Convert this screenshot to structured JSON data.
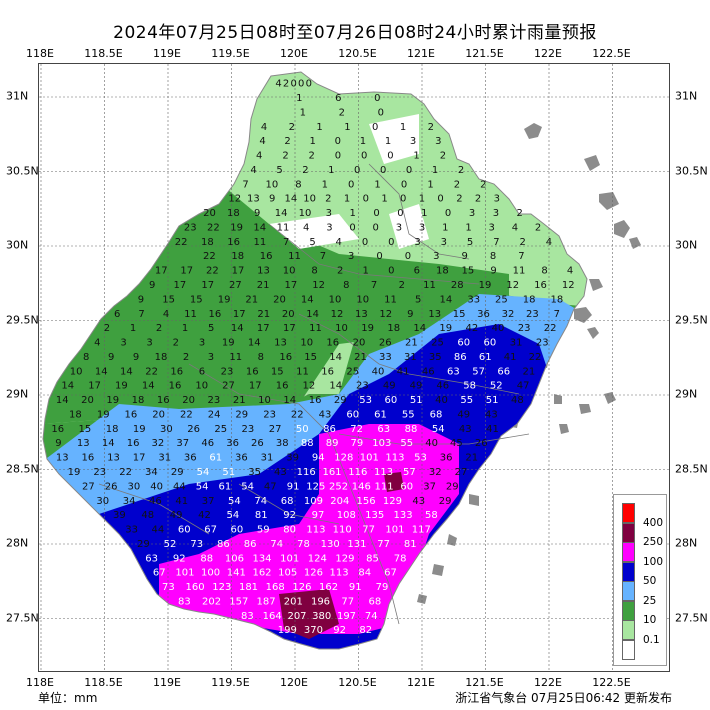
{
  "title": "2024年07月25日08时至07月26日08时24小时累计雨量预报",
  "unit_label": "单位：mm",
  "issuer": "浙江省气象台 07月25日06:42 更新发布",
  "lon_ticks": [
    "118E",
    "118.5E",
    "119E",
    "119.5E",
    "120E",
    "120.5E",
    "121E",
    "121.5E",
    "122E",
    "122.5E"
  ],
  "lat_ticks": [
    "31N",
    "30.5N",
    "30N",
    "29.5N",
    "29N",
    "28.5N",
    "28N",
    "27.5N"
  ],
  "legend": {
    "labels": [
      "400",
      "250",
      "100",
      "50",
      "25",
      "10",
      "0.1"
    ],
    "colors": [
      "#ff0000",
      "#800040",
      "#ff00ff",
      "#0000cd",
      "#66b3ff",
      "#3fa03f",
      "#a8e6a0",
      "#ffffff"
    ]
  },
  "rain_values": [
    [
      "4",
      "2",
      "0",
      "0",
      "0"
    ],
    [
      "1",
      "6",
      "0"
    ],
    [
      "1",
      "2",
      "0"
    ],
    [
      "4",
      "2",
      "1",
      "1",
      "0",
      "1",
      "2"
    ],
    [
      "4",
      "2",
      "1",
      "0",
      "1",
      "1",
      "3",
      "3"
    ],
    [
      "4",
      "2",
      "2",
      "0",
      "0",
      "0",
      "1",
      "2"
    ],
    [
      "4",
      "5",
      "2",
      "1",
      "0",
      "0",
      "0",
      "1",
      "2"
    ],
    [
      "7",
      "10",
      "8",
      "1",
      "0",
      "1",
      "0",
      "1",
      "2",
      "2"
    ],
    [
      "12",
      "13",
      "9",
      "14",
      "10",
      "2",
      "1",
      "0",
      "1",
      "0",
      "1",
      "0",
      "2",
      "2",
      "3"
    ],
    [
      "20",
      "18",
      "9",
      "14",
      "10",
      "3",
      "1",
      "0",
      "0",
      "1",
      "0",
      "3",
      "3",
      "2"
    ],
    [
      "23",
      "22",
      "19",
      "14",
      "11",
      "4",
      "3",
      "0",
      "0",
      "3",
      "3",
      "1",
      "1",
      "3",
      "4",
      "2"
    ],
    [
      "22",
      "18",
      "16",
      "11",
      "7",
      "5",
      "4",
      "0",
      "0",
      "3",
      "3",
      "5",
      "7",
      "2",
      "4"
    ],
    [
      "22",
      "18",
      "16",
      "11",
      "7",
      "3",
      "0",
      "0",
      "3",
      "9",
      "8",
      "7"
    ],
    [
      "17",
      "17",
      "22",
      "17",
      "13",
      "10",
      "8",
      "2",
      "1",
      "0",
      "6",
      "18",
      "15",
      "9",
      "11",
      "8",
      "4"
    ],
    [
      "9",
      "17",
      "17",
      "27",
      "21",
      "17",
      "12",
      "8",
      "7",
      "2",
      "11",
      "28",
      "19",
      "12",
      "16",
      "12"
    ],
    [
      "9",
      "15",
      "15",
      "19",
      "21",
      "20",
      "14",
      "10",
      "10",
      "11",
      "5",
      "14",
      "33",
      "25",
      "18",
      "18"
    ],
    [
      "6",
      "7",
      "4",
      "11",
      "16",
      "17",
      "21",
      "20",
      "14",
      "12",
      "13",
      "12",
      "9",
      "13",
      "15",
      "36",
      "32",
      "23",
      "7"
    ],
    [
      "2",
      "1",
      "2",
      "1",
      "5",
      "14",
      "17",
      "17",
      "11",
      "10",
      "19",
      "18",
      "14",
      "19",
      "42",
      "40",
      "23",
      "22"
    ],
    [
      "4",
      "3",
      "3",
      "2",
      "3",
      "19",
      "14",
      "13",
      "10",
      "16",
      "20",
      "26",
      "21",
      "25",
      "60",
      "60",
      "31",
      "23"
    ],
    [
      "8",
      "9",
      "9",
      "18",
      "2",
      "3",
      "11",
      "8",
      "16",
      "15",
      "14",
      "21",
      "33",
      "31",
      "35",
      "86",
      "61",
      "41",
      "22"
    ],
    [
      "10",
      "14",
      "14",
      "22",
      "16",
      "6",
      "23",
      "16",
      "15",
      "11",
      "16",
      "25",
      "40",
      "41",
      "46",
      "63",
      "57",
      "66",
      "21"
    ],
    [
      "14",
      "17",
      "19",
      "14",
      "16",
      "10",
      "27",
      "17",
      "16",
      "12",
      "14",
      "23",
      "49",
      "49",
      "46",
      "58",
      "52",
      "47"
    ],
    [
      "14",
      "20",
      "19",
      "18",
      "16",
      "20",
      "23",
      "21",
      "10",
      "14",
      "16",
      "29",
      "53",
      "60",
      "51",
      "40",
      "55",
      "51",
      "48"
    ],
    [
      "18",
      "19",
      "16",
      "20",
      "22",
      "24",
      "29",
      "23",
      "22",
      "43",
      "60",
      "61",
      "55",
      "68",
      "49",
      "43"
    ],
    [
      "16",
      "15",
      "18",
      "19",
      "30",
      "26",
      "25",
      "23",
      "27",
      "50",
      "86",
      "72",
      "63",
      "88",
      "54",
      "43",
      "41"
    ],
    [
      "9",
      "13",
      "14",
      "16",
      "32",
      "37",
      "46",
      "36",
      "26",
      "38",
      "88",
      "89",
      "79",
      "103",
      "55",
      "40",
      "45",
      "26"
    ],
    [
      "13",
      "16",
      "13",
      "17",
      "31",
      "36",
      "61",
      "36",
      "31",
      "39",
      "94",
      "128",
      "101",
      "113",
      "53",
      "36",
      "21"
    ],
    [
      "19",
      "23",
      "22",
      "34",
      "29",
      "54",
      "51",
      "35",
      "43",
      "116",
      "161",
      "116",
      "113",
      "57",
      "32",
      "27"
    ],
    [
      "27",
      "26",
      "30",
      "40",
      "44",
      "54",
      "61",
      "54",
      "47",
      "91",
      "125",
      "252",
      "146",
      "111",
      "60",
      "37",
      "29"
    ],
    [
      "30",
      "34",
      "46",
      "41",
      "37",
      "54",
      "74",
      "68",
      "109",
      "204",
      "156",
      "129",
      "43",
      "29"
    ],
    [
      "39",
      "48",
      "49",
      "42",
      "54",
      "81",
      "92",
      "97",
      "108",
      "135",
      "133",
      "58"
    ],
    [
      "33",
      "44",
      "60",
      "67",
      "60",
      "59",
      "80",
      "113",
      "110",
      "77",
      "101",
      "117"
    ],
    [
      "29",
      "52",
      "73",
      "86",
      "86",
      "74",
      "78",
      "130",
      "131",
      "77",
      "81"
    ],
    [
      "63",
      "92",
      "88",
      "106",
      "134",
      "101",
      "124",
      "129",
      "85",
      "78"
    ],
    [
      "67",
      "101",
      "100",
      "141",
      "162",
      "105",
      "126",
      "113",
      "84",
      "67"
    ],
    [
      "73",
      "160",
      "123",
      "181",
      "168",
      "126",
      "162",
      "91",
      "79"
    ],
    [
      "83",
      "202",
      "157",
      "187",
      "201",
      "196",
      "77",
      "68"
    ],
    [
      "83",
      "164",
      "207",
      "380",
      "197",
      "74"
    ],
    [
      "199",
      "370",
      "92",
      "82"
    ]
  ]
}
